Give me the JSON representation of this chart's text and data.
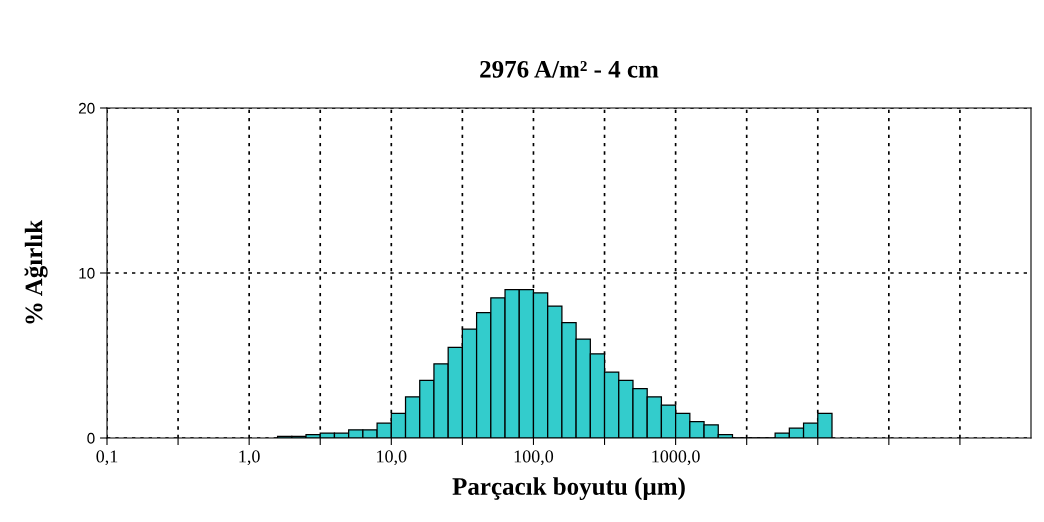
{
  "chart_data": {
    "type": "histogram",
    "title": "2976 A/m² - 4 cm",
    "xlabel": "Parçacık boyutu (µm)",
    "ylabel": "% Ağırlık",
    "bins": [
      1.585,
      1.995,
      2.512,
      3.162,
      3.981,
      5.012,
      6.31,
      7.943,
      10,
      12.59,
      15.85,
      19.95,
      25.12,
      31.62,
      39.81,
      50.12,
      63.1,
      79.43,
      100,
      125.9,
      158.5,
      199.5,
      251.2,
      316.2,
      398.1,
      501.2,
      631,
      794.3,
      1000,
      1259,
      1585,
      1995,
      2512,
      3162,
      3981,
      5012,
      6310,
      7943,
      10000,
      12590
    ],
    "values": [
      0.1,
      0.1,
      0.2,
      0.3,
      0.3,
      0.5,
      0.5,
      0.9,
      1.5,
      2.5,
      3.5,
      4.5,
      5.5,
      6.6,
      7.6,
      8.5,
      9.0,
      9.0,
      8.8,
      8.0,
      7.0,
      6.0,
      5.1,
      4.0,
      3.5,
      3.0,
      2.5,
      2.0,
      1.5,
      1.0,
      0.8,
      0.2,
      0,
      0,
      0,
      0.3,
      0.6,
      0.9,
      1.5
    ],
    "color": "#33cccc",
    "log": "x",
    "xlim": [
      0.1,
      316200
    ],
    "xticks": [
      {
        "value": 0.1,
        "label": "0,1"
      },
      {
        "value": 0.3162,
        "label": null
      },
      {
        "value": 1,
        "label": "1,0"
      },
      {
        "value": 3.162,
        "label": null
      },
      {
        "value": 10,
        "label": "10,0"
      },
      {
        "value": 31.62,
        "label": null
      },
      {
        "value": 100,
        "label": "100,0"
      },
      {
        "value": 316.2,
        "label": null
      },
      {
        "value": 1000,
        "label": "1000,0"
      },
      {
        "value": 3162,
        "label": null
      },
      {
        "value": 10000,
        "label": null
      },
      {
        "value": 31620,
        "label": null
      },
      {
        "value": 100000,
        "label": null
      }
    ],
    "ylim": [
      0,
      20
    ],
    "yticks": [
      0,
      10,
      20
    ],
    "grid": true
  }
}
